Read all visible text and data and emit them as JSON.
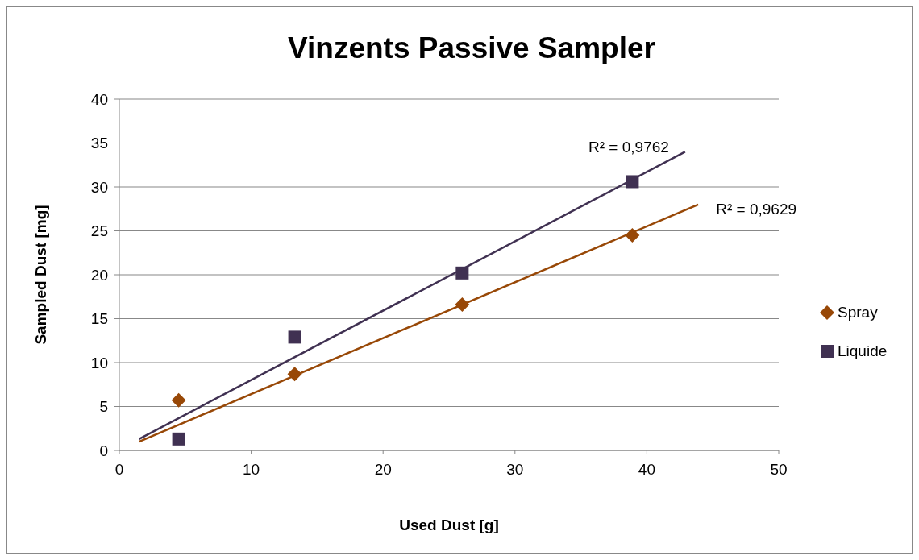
{
  "chart_data": {
    "type": "scatter",
    "title": "Vinzents Passive Sampler",
    "xlabel": "Used Dust [g]",
    "ylabel": "Sampled Dust [mg]",
    "xlim": [
      0,
      50
    ],
    "xticks": [
      0,
      10,
      20,
      30,
      40,
      50
    ],
    "ylim": [
      0,
      40
    ],
    "yticks": [
      0,
      5,
      10,
      15,
      20,
      25,
      30,
      35,
      40
    ],
    "grid": "y",
    "legend": "right",
    "series": [
      {
        "name": "Spray",
        "marker": "diamond",
        "color": "#984807",
        "x": [
          4.5,
          13.3,
          26.0,
          38.9
        ],
        "values": [
          5.7,
          8.7,
          16.6,
          24.5
        ]
      },
      {
        "name": "Liquide",
        "marker": "square",
        "color": "#403152",
        "x": [
          4.5,
          13.3,
          26.0,
          38.9
        ],
        "values": [
          1.3,
          12.9,
          20.2,
          30.6
        ]
      },
      {
        "type": "line",
        "color": "#403152",
        "x": [
          1.5,
          42.9
        ],
        "values": [
          1.3,
          34.0
        ]
      },
      {
        "type": "line",
        "color": "#984807",
        "x": [
          1.5,
          43.9
        ],
        "values": [
          1.0,
          28.0
        ]
      }
    ],
    "annotations": [
      "R² = 0,9762",
      "R² = 0,9629"
    ]
  }
}
